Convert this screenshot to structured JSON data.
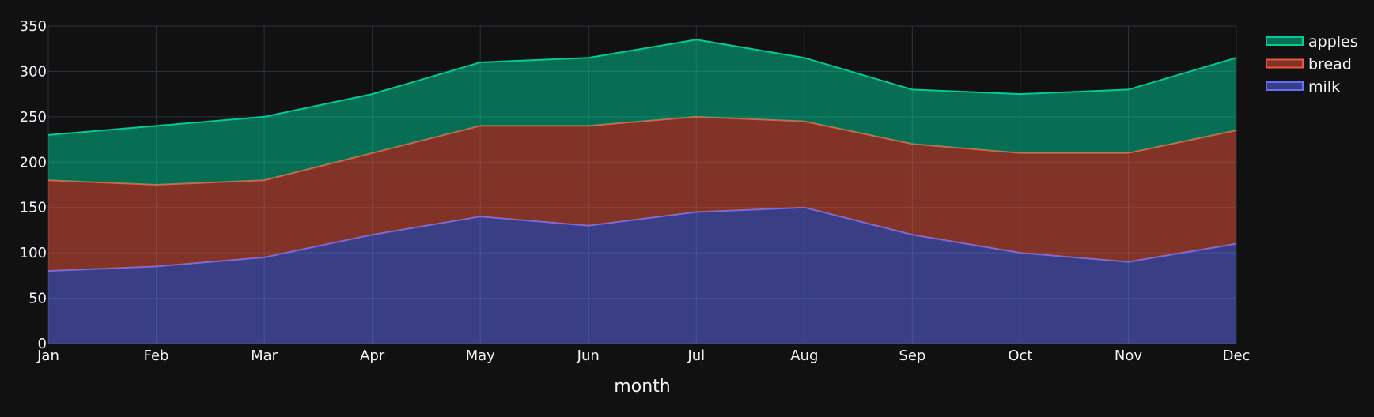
{
  "chart_data": {
    "type": "area",
    "stacked": true,
    "x": [
      "Jan",
      "Feb",
      "Mar",
      "Apr",
      "May",
      "Jun",
      "Jul",
      "Aug",
      "Sep",
      "Oct",
      "Nov",
      "Dec"
    ],
    "xlabel": "month",
    "ylabel": "",
    "ylim": [
      0,
      350
    ],
    "yticks": [
      0,
      50,
      100,
      150,
      200,
      250,
      300,
      350
    ],
    "grid": true,
    "legend_position": "top-right",
    "series": [
      {
        "name": "milk",
        "color": "#636efa",
        "values": [
          80,
          85,
          95,
          120,
          140,
          130,
          145,
          150,
          120,
          100,
          90,
          110
        ]
      },
      {
        "name": "bread",
        "color": "#ef553b",
        "values": [
          100,
          90,
          85,
          90,
          100,
          110,
          105,
          95,
          100,
          110,
          120,
          125
        ]
      },
      {
        "name": "apples",
        "color": "#00cc96",
        "values": [
          50,
          65,
          70,
          65,
          70,
          75,
          85,
          70,
          60,
          65,
          70,
          80
        ]
      }
    ],
    "legend_order": [
      "apples",
      "bread",
      "milk"
    ]
  },
  "colors": {
    "background": "#111111",
    "grid": "#283442",
    "text": "#f2f5fa"
  }
}
